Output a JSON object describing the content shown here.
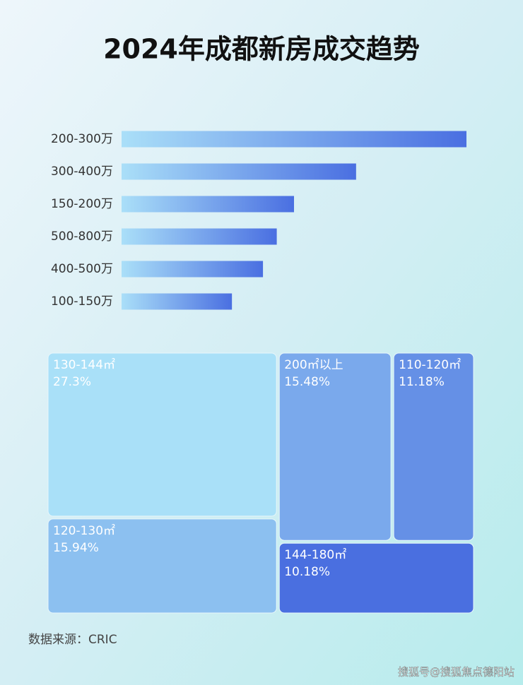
{
  "title": "2024年成都新房成交趋势",
  "chart_data": [
    {
      "type": "hbar",
      "categories": [
        "200-300万",
        "300-400万",
        "150-200万",
        "500-800万",
        "400-500万",
        "100-150万"
      ],
      "values": [
        100,
        68,
        50,
        45,
        41,
        32
      ],
      "xlim": [
        0,
        100
      ],
      "gradient": [
        "#aadff8",
        "#4a6fe1"
      ]
    },
    {
      "type": "treemap",
      "categories": [
        "130-144㎡",
        "120-130㎡",
        "200㎡以上",
        "110-120㎡",
        "144-180㎡"
      ],
      "values": [
        27.3,
        15.94,
        15.48,
        11.18,
        10.18
      ],
      "value_labels": [
        "27.3%",
        "15.94%",
        "15.48%",
        "11.18%",
        "10.18%"
      ],
      "colors": [
        "#a9e0f8",
        "#8cc0f0",
        "#7aa9ec",
        "#6590e6",
        "#4a6fe0"
      ]
    }
  ],
  "source": "数据来源：CRIC",
  "watermark": "搜狐号@搜狐焦点德阳站"
}
